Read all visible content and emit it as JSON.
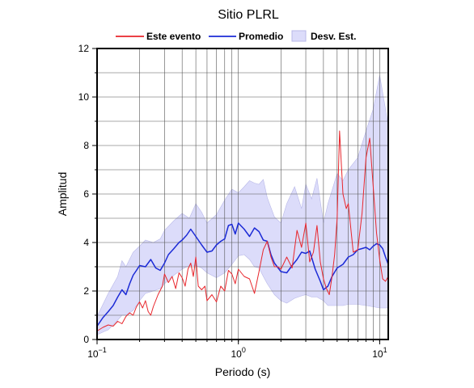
{
  "chart_data": {
    "type": "line",
    "title": "Sitio PLRL",
    "xlabel": "Periodo (s)",
    "ylabel": "Amplitud",
    "xscale": "log",
    "xlim": [
      0.1,
      11.5
    ],
    "ylim": [
      0,
      12
    ],
    "grid": true,
    "legend_position": "top",
    "x_ticks": [
      {
        "value": 0.1,
        "base": "10",
        "exp": "−1"
      },
      {
        "value": 1,
        "base": "10",
        "exp": "0"
      },
      {
        "value": 10,
        "base": "10",
        "exp": "1"
      }
    ],
    "y_ticks": [
      0,
      2,
      4,
      6,
      8,
      10,
      12
    ],
    "legend": {
      "event_label": "Este evento",
      "mean_label": "Promedio",
      "std_label": "Desv. Est."
    },
    "colors": {
      "event": "#e8262c",
      "mean": "#1c2bd6",
      "std_fill": "#dcdcfa",
      "std_stroke": "#b8b8e8"
    },
    "series": [
      {
        "name": "Este evento",
        "x": [
          0.1,
          0.11,
          0.12,
          0.13,
          0.14,
          0.15,
          0.16,
          0.17,
          0.18,
          0.19,
          0.2,
          0.21,
          0.22,
          0.23,
          0.24,
          0.25,
          0.27,
          0.29,
          0.3,
          0.32,
          0.34,
          0.36,
          0.38,
          0.4,
          0.42,
          0.44,
          0.46,
          0.48,
          0.5,
          0.52,
          0.55,
          0.58,
          0.6,
          0.65,
          0.7,
          0.75,
          0.8,
          0.85,
          0.9,
          0.95,
          1.0,
          1.1,
          1.2,
          1.3,
          1.4,
          1.5,
          1.6,
          1.7,
          1.8,
          1.9,
          2.0,
          2.2,
          2.4,
          2.6,
          2.8,
          3.0,
          3.2,
          3.4,
          3.6,
          3.8,
          4.0,
          4.2,
          4.4,
          4.6,
          4.8,
          5.0,
          5.2,
          5.5,
          5.8,
          6.0,
          6.5,
          7.0,
          7.5,
          8.0,
          8.5,
          9.0,
          9.5,
          10.0,
          10.5,
          11.0,
          11.5
        ],
        "values": [
          0.35,
          0.5,
          0.6,
          0.55,
          0.75,
          0.65,
          0.95,
          1.1,
          1.0,
          1.35,
          1.55,
          1.3,
          1.6,
          1.15,
          1.0,
          1.35,
          1.85,
          2.2,
          2.7,
          2.35,
          2.6,
          2.1,
          2.75,
          2.55,
          2.2,
          2.9,
          3.15,
          2.6,
          3.4,
          2.2,
          2.05,
          2.2,
          1.6,
          1.85,
          1.55,
          2.2,
          2.0,
          2.85,
          2.7,
          2.3,
          2.9,
          2.6,
          2.5,
          1.9,
          2.8,
          3.7,
          4.05,
          3.4,
          3.0,
          3.0,
          2.9,
          3.4,
          2.95,
          4.5,
          3.8,
          4.8,
          3.2,
          3.6,
          4.7,
          3.2,
          2.5,
          2.1,
          1.85,
          2.6,
          3.5,
          5.0,
          8.6,
          6.0,
          5.4,
          5.6,
          3.6,
          3.7,
          5.2,
          7.5,
          8.3,
          6.3,
          4.4,
          3.3,
          2.5,
          2.4,
          2.6
        ]
      },
      {
        "name": "Promedio",
        "x": [
          0.1,
          0.11,
          0.12,
          0.13,
          0.14,
          0.15,
          0.16,
          0.17,
          0.18,
          0.19,
          0.2,
          0.22,
          0.24,
          0.26,
          0.28,
          0.3,
          0.32,
          0.35,
          0.38,
          0.4,
          0.43,
          0.46,
          0.5,
          0.55,
          0.6,
          0.65,
          0.7,
          0.75,
          0.8,
          0.85,
          0.9,
          0.95,
          1.0,
          1.1,
          1.2,
          1.3,
          1.4,
          1.5,
          1.6,
          1.7,
          1.8,
          2.0,
          2.2,
          2.4,
          2.6,
          2.8,
          3.0,
          3.2,
          3.5,
          3.8,
          4.0,
          4.3,
          4.6,
          5.0,
          5.5,
          6.0,
          6.5,
          7.0,
          7.5,
          8.0,
          8.5,
          9.0,
          9.5,
          10.0,
          10.5,
          11.0,
          11.5
        ],
        "values": [
          0.55,
          0.9,
          1.15,
          1.4,
          1.75,
          2.05,
          1.85,
          2.3,
          2.65,
          2.85,
          3.05,
          3.0,
          3.3,
          2.95,
          2.85,
          3.15,
          3.5,
          3.75,
          4.0,
          4.1,
          4.3,
          4.55,
          4.25,
          3.9,
          3.6,
          3.65,
          3.9,
          4.05,
          4.15,
          4.7,
          4.75,
          4.35,
          4.8,
          4.55,
          4.25,
          4.6,
          4.45,
          4.1,
          4.05,
          3.5,
          3.15,
          2.8,
          2.75,
          3.05,
          3.3,
          3.6,
          3.55,
          3.65,
          2.9,
          2.4,
          2.05,
          2.2,
          2.6,
          2.95,
          3.1,
          3.4,
          3.5,
          3.7,
          3.75,
          3.8,
          3.7,
          3.85,
          3.95,
          3.9,
          3.75,
          3.4,
          3.1
        ]
      },
      {
        "name": "Desv. Est.",
        "x": [
          0.1,
          0.12,
          0.14,
          0.15,
          0.16,
          0.18,
          0.2,
          0.22,
          0.25,
          0.28,
          0.3,
          0.35,
          0.4,
          0.45,
          0.5,
          0.55,
          0.6,
          0.7,
          0.8,
          0.9,
          1.0,
          1.1,
          1.2,
          1.3,
          1.4,
          1.5,
          1.6,
          1.8,
          2.0,
          2.2,
          2.5,
          2.8,
          3.0,
          3.3,
          3.6,
          4.0,
          4.3,
          4.6,
          5.0,
          5.5,
          6.0,
          7.0,
          8.0,
          9.0,
          10.0,
          11.0,
          11.5
        ],
        "upper": [
          0.95,
          1.9,
          2.6,
          3.25,
          3.0,
          3.6,
          3.85,
          4.1,
          4.0,
          4.15,
          4.5,
          4.9,
          5.2,
          5.0,
          5.6,
          5.25,
          4.8,
          5.15,
          5.75,
          6.2,
          6.05,
          6.3,
          6.55,
          6.45,
          6.4,
          6.6,
          5.85,
          5.05,
          4.8,
          5.6,
          6.3,
          5.4,
          6.4,
          5.8,
          6.65,
          4.8,
          5.6,
          6.15,
          6.85,
          6.55,
          7.0,
          7.5,
          8.6,
          9.5,
          10.9,
          9.5,
          8.8
        ],
        "lower": [
          0.2,
          0.4,
          0.8,
          1.0,
          1.0,
          1.2,
          1.6,
          1.9,
          2.0,
          2.1,
          2.3,
          2.65,
          2.9,
          3.05,
          3.05,
          2.95,
          2.75,
          2.55,
          2.75,
          3.1,
          3.45,
          3.5,
          3.3,
          3.0,
          2.95,
          2.6,
          2.3,
          1.85,
          1.6,
          1.5,
          1.7,
          1.8,
          1.85,
          1.75,
          1.75,
          1.6,
          1.4,
          1.4,
          1.4,
          1.4,
          1.45,
          1.45,
          1.4,
          1.35,
          1.3,
          1.3,
          1.3
        ]
      }
    ]
  }
}
